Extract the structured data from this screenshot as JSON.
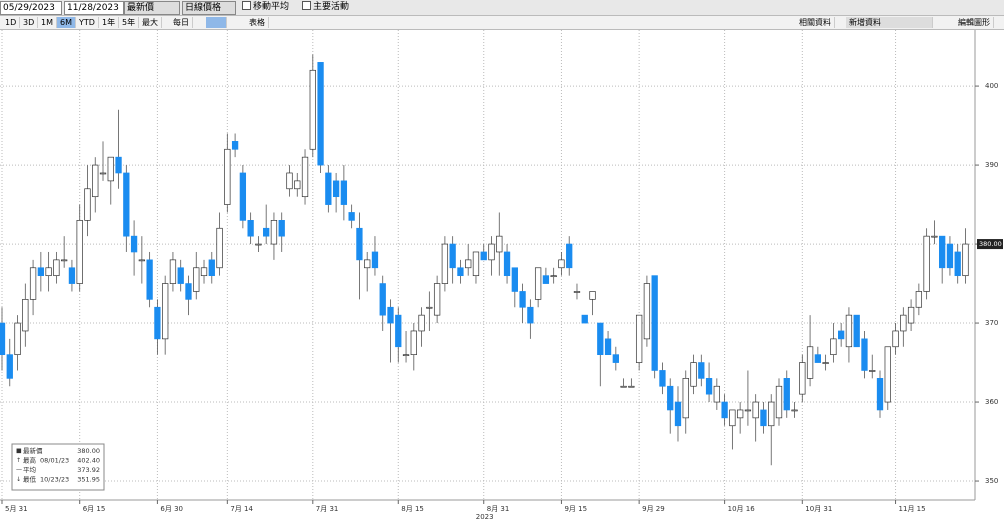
{
  "toolbar": {
    "start_date": "05/29/2023",
    "end_date": "11/28/2023",
    "field": "最新價",
    "style": "日線價格",
    "moving_average": "移動平均",
    "events": "主要活動",
    "ranges": [
      "1D",
      "3D",
      "1M",
      "6M",
      "YTD",
      "1年",
      "5年",
      "最大"
    ],
    "frequency": "每日",
    "table": "表格",
    "related": "相關資料",
    "add_data": "新增資料",
    "edit": "編輯圖形"
  },
  "chart_data": {
    "type": "candlestick",
    "categories": [
      "5月 31",
      null,
      null,
      null,
      null,
      null,
      null,
      null,
      null,
      null,
      "6月 15",
      null,
      null,
      null,
      null,
      null,
      null,
      null,
      null,
      null,
      "6月 30",
      null,
      null,
      null,
      null,
      null,
      null,
      null,
      null,
      "7月 14",
      null,
      null,
      null,
      null,
      null,
      null,
      null,
      null,
      null,
      null,
      "7月 31",
      null,
      null,
      null,
      null,
      null,
      null,
      null,
      null,
      null,
      null,
      "8月 15",
      null,
      null,
      null,
      null,
      null,
      null,
      null,
      null,
      null,
      null,
      "8月 31",
      null,
      null,
      null,
      null,
      null,
      null,
      null,
      null,
      null,
      "9月 15",
      null,
      null,
      null,
      null,
      null,
      null,
      null,
      null,
      null,
      "9月 29",
      null,
      null,
      null,
      null,
      null,
      null,
      null,
      null,
      null,
      null,
      "10月 16",
      null,
      null,
      null,
      null,
      null,
      null,
      null,
      null,
      null,
      "10月 31",
      null,
      null,
      null,
      null,
      null,
      null,
      null,
      null,
      null,
      null,
      null,
      "11月 15",
      null,
      null,
      null,
      null,
      null,
      null,
      null,
      null,
      null
    ],
    "year_label": "2023",
    "open": [
      370,
      366,
      366,
      369,
      373,
      377,
      376,
      376,
      378,
      377,
      375,
      383,
      386,
      389,
      388,
      391,
      389,
      381,
      378,
      378,
      372,
      368,
      375,
      377,
      375,
      374,
      376,
      378,
      377,
      385,
      393,
      389,
      383,
      380,
      382,
      380,
      383,
      387,
      387,
      386,
      392,
      403,
      389,
      388,
      388,
      384,
      382,
      377,
      379,
      375,
      372,
      371,
      366,
      366,
      369,
      372,
      371,
      375,
      380,
      377,
      377,
      376,
      379,
      378,
      379,
      379,
      377,
      374,
      372,
      373,
      376,
      376,
      377,
      380,
      374,
      371,
      373,
      370,
      368,
      366,
      362,
      362,
      365,
      368,
      376,
      364,
      362,
      360,
      358,
      362,
      365,
      363,
      360,
      360,
      357,
      358,
      359,
      358,
      359,
      357,
      358,
      363,
      359,
      361,
      363,
      366,
      365,
      366,
      369,
      367,
      371,
      368,
      364,
      363,
      360,
      367,
      369,
      370,
      372,
      374,
      381,
      381,
      380,
      379,
      376
    ],
    "high": [
      372,
      368,
      371,
      375,
      378,
      379,
      379,
      379,
      381,
      378,
      385,
      390,
      391,
      393,
      391,
      397,
      390,
      383,
      381,
      379,
      373,
      376,
      379,
      378,
      376,
      379,
      378,
      379,
      384,
      394,
      394,
      390,
      384,
      381,
      385,
      384,
      384,
      390,
      389,
      392,
      404,
      403,
      390,
      389,
      390,
      385,
      384,
      379,
      381,
      376,
      373,
      372,
      369,
      370,
      372,
      374,
      376,
      381,
      381,
      378,
      380,
      379,
      380,
      381,
      384,
      380,
      377,
      375,
      373,
      377,
      377,
      377,
      379,
      381,
      375,
      371,
      374,
      370,
      369,
      367,
      363,
      363,
      371,
      376,
      376,
      365,
      363,
      362,
      364,
      366,
      366,
      365,
      363,
      361,
      359,
      360,
      364,
      361,
      360,
      361,
      363,
      364,
      360,
      366,
      371,
      367,
      366,
      370,
      370,
      372,
      371,
      369,
      366,
      364,
      367,
      370,
      372,
      373,
      375,
      382,
      383,
      381,
      381,
      380,
      382
    ],
    "low": [
      364,
      362,
      364,
      367,
      371,
      374,
      374,
      375,
      377,
      374,
      374,
      381,
      384,
      388,
      385,
      387,
      379,
      376,
      375,
      372,
      366,
      366,
      374,
      374,
      371,
      373,
      375,
      375,
      376,
      384,
      391,
      382,
      380,
      379,
      380,
      378,
      379,
      386,
      386,
      385,
      391,
      389,
      384,
      384,
      383,
      382,
      373,
      374,
      376,
      369,
      365,
      365,
      365,
      364,
      367,
      369,
      370,
      374,
      375,
      375,
      376,
      375,
      378,
      376,
      376,
      375,
      372,
      370,
      368,
      372,
      375,
      375,
      376,
      376,
      373,
      370,
      371,
      362,
      366,
      364,
      362,
      362,
      364,
      367,
      363,
      361,
      356,
      355,
      356,
      361,
      362,
      360,
      359,
      357,
      354,
      356,
      357,
      355,
      356,
      352,
      357,
      358,
      358,
      360,
      362,
      365,
      364,
      365,
      367,
      365,
      367,
      363,
      363,
      358,
      359,
      366,
      367,
      369,
      371,
      373,
      380,
      375,
      376,
      375,
      375
    ],
    "close": [
      366,
      363,
      370,
      373,
      377,
      376,
      377,
      378,
      378,
      375,
      383,
      387,
      390,
      389,
      391,
      389,
      381,
      379,
      378,
      373,
      368,
      375,
      378,
      375,
      373,
      377,
      377,
      376,
      382,
      392,
      392,
      383,
      381,
      380,
      381,
      383,
      381,
      389,
      388,
      391,
      402,
      390,
      385,
      386,
      385,
      383,
      378,
      378,
      377,
      371,
      370,
      367,
      366,
      369,
      371,
      372,
      375,
      380,
      377,
      376,
      378,
      379,
      378,
      380,
      381,
      376,
      374,
      372,
      370,
      377,
      375,
      376,
      378,
      377,
      374,
      370,
      374,
      366,
      366,
      365,
      362,
      362,
      371,
      375,
      364,
      362,
      359,
      357,
      363,
      365,
      363,
      361,
      362,
      358,
      359,
      359,
      359,
      360,
      357,
      360,
      362,
      359,
      359,
      365,
      367,
      365,
      365,
      368,
      368,
      371,
      367,
      364,
      364,
      359,
      367,
      369,
      371,
      372,
      374,
      381,
      381,
      377,
      377,
      376,
      380
    ],
    "up_color": "#ffffff",
    "down_color": "#1a8cf0",
    "ylim": [
      347.6,
      407.1
    ],
    "yticks": [
      350,
      360,
      370,
      380,
      390,
      400
    ],
    "grid": true,
    "stats": {
      "names": [
        "最新價",
        "最高",
        "平均",
        "最低"
      ],
      "dates": [
        null,
        "08/01/23",
        null,
        "10/23/23"
      ],
      "values": [
        380,
        402.4,
        373.92,
        351.95
      ],
      "value_labels": [
        "380.00",
        "402.40",
        "373.92",
        "351.95"
      ]
    }
  }
}
